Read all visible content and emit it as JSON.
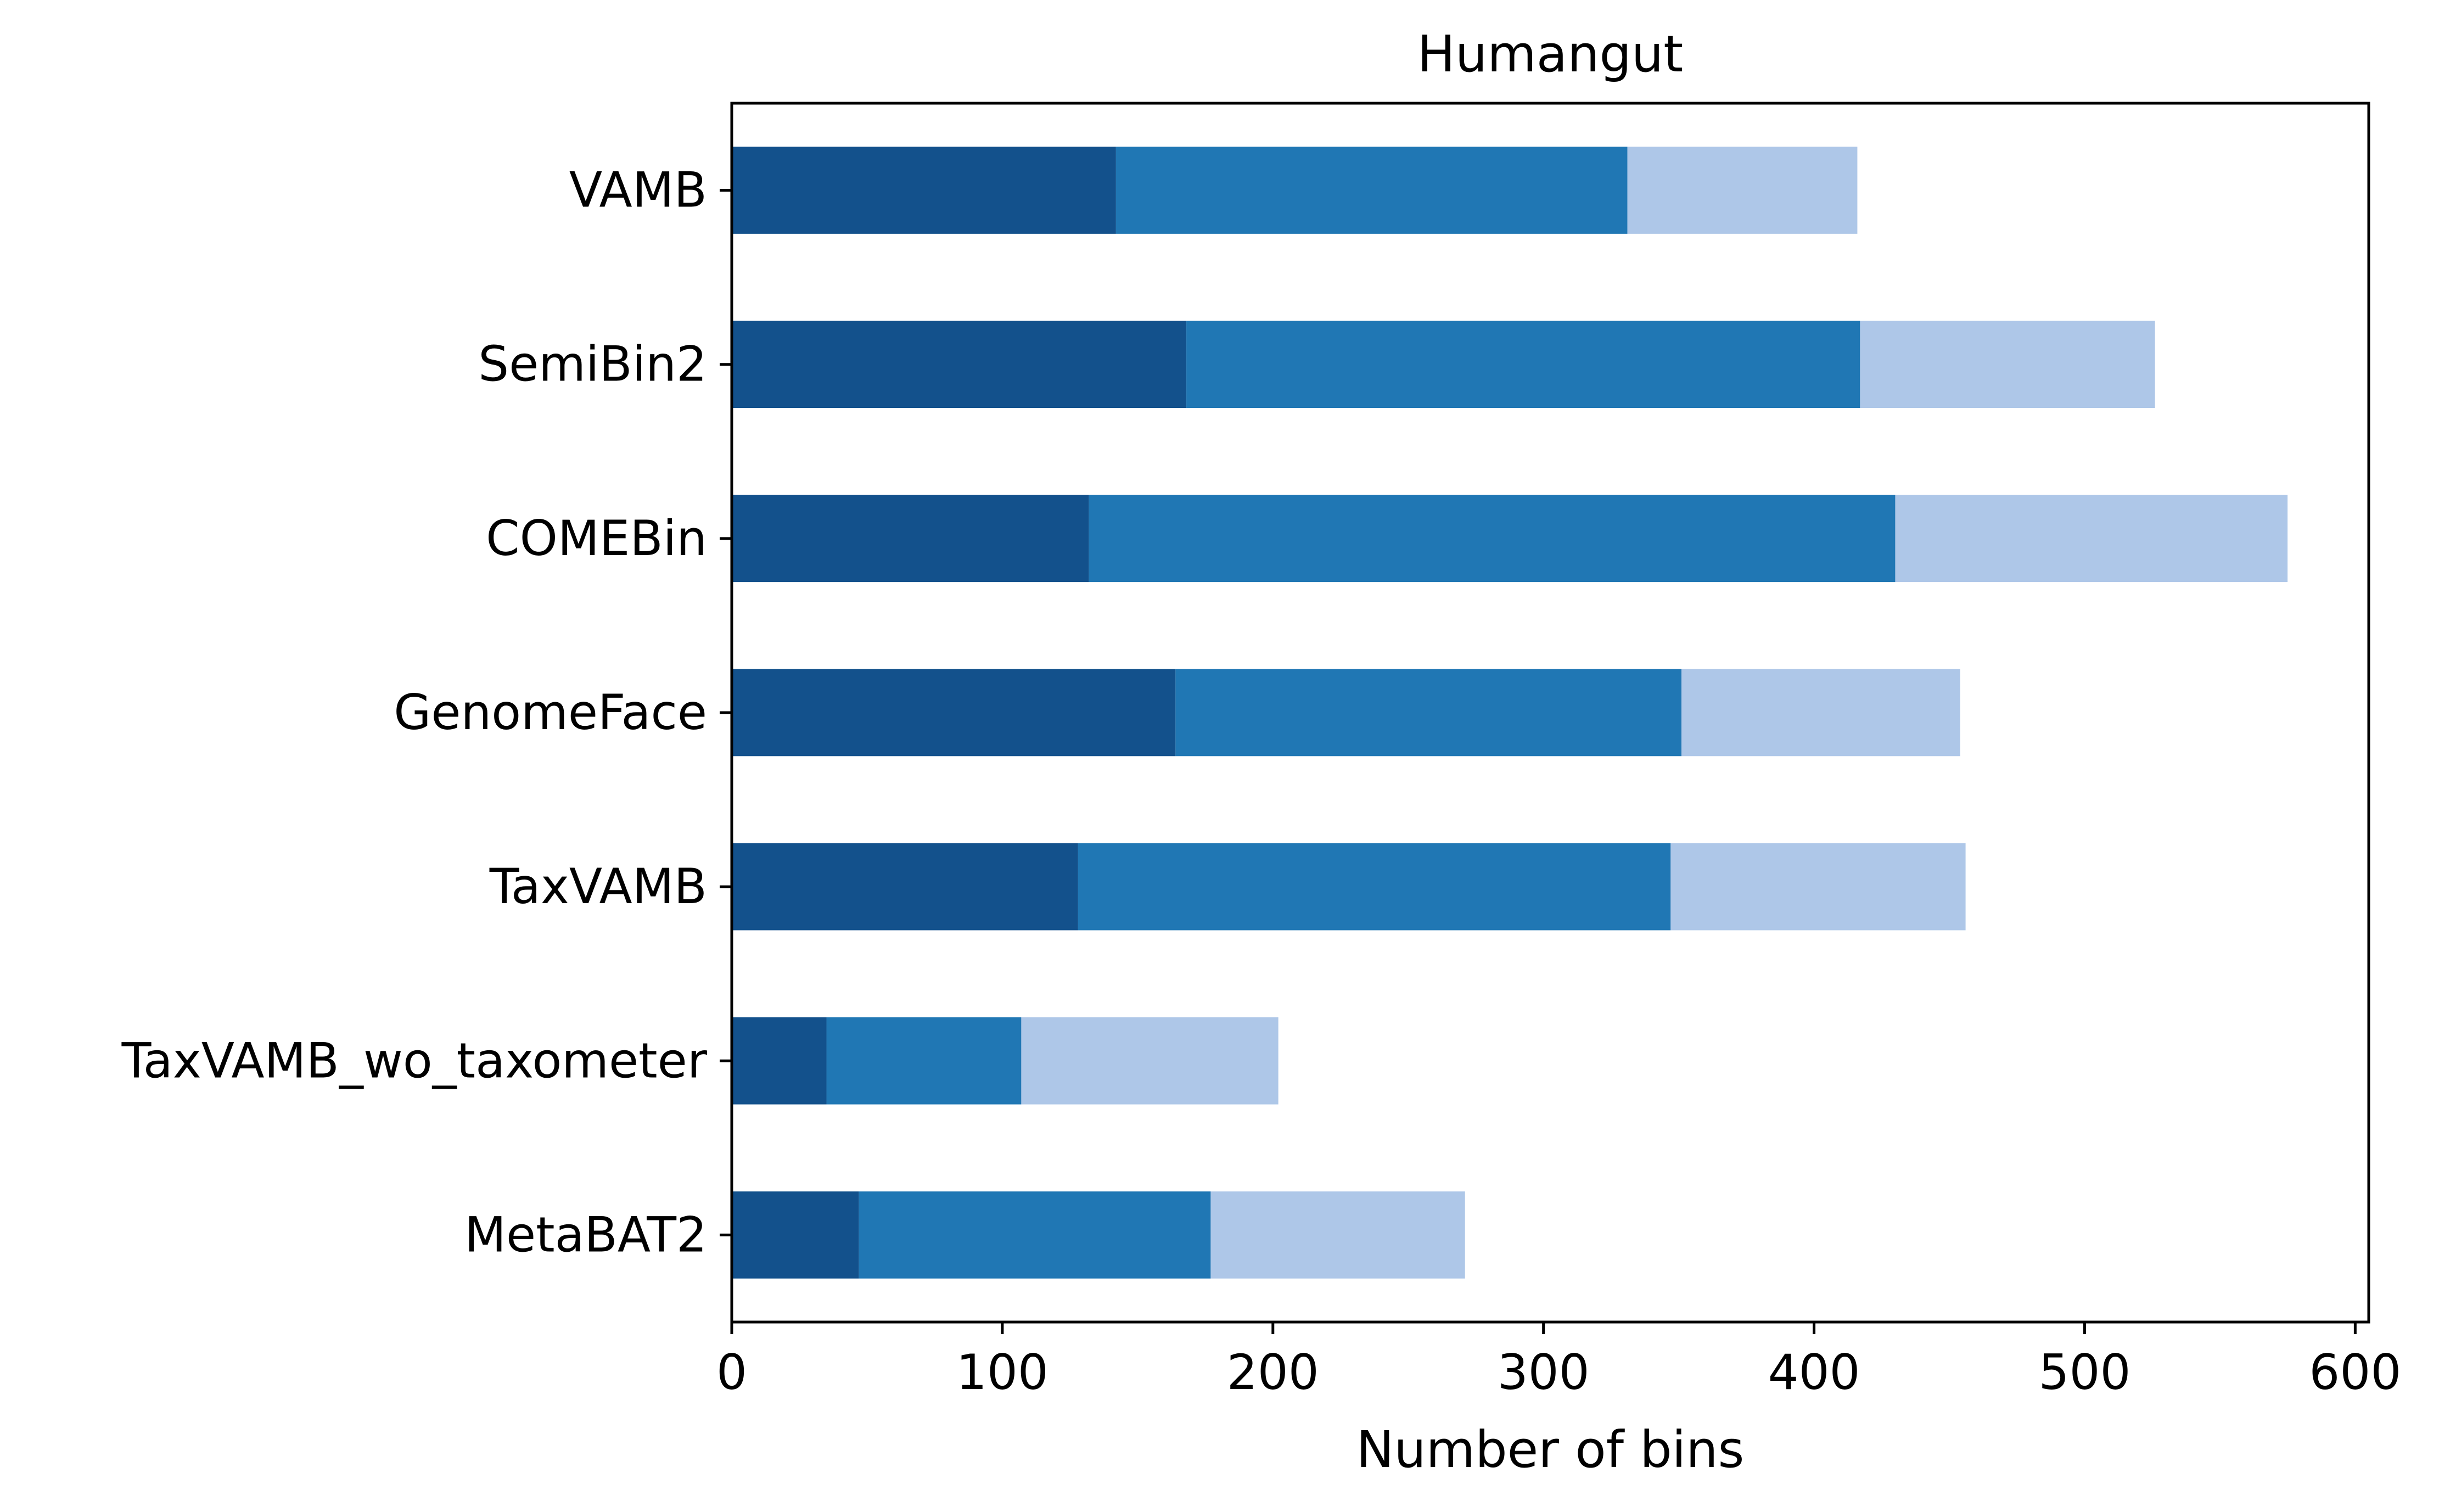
{
  "chart_data": {
    "type": "bar",
    "orientation": "horizontal",
    "stacked": true,
    "title": "Humangut",
    "xlabel": "Number of bins",
    "ylabel": "",
    "xlim": [
      0,
      605
    ],
    "xticks": [
      0,
      100,
      200,
      300,
      400,
      500,
      600
    ],
    "grid": false,
    "legend": "none",
    "categories": [
      "VAMB",
      "SemiBin2",
      "COMEBin",
      "GenomeFace",
      "TaxVAMB",
      "TaxVAMB_wo_taxometer",
      "MetaBAT2"
    ],
    "series": [
      {
        "color": "#13518c",
        "values": [
          142,
          168,
          132,
          164,
          128,
          35,
          47
        ]
      },
      {
        "color": "#2077b4",
        "values": [
          189,
          249,
          298,
          187,
          219,
          72,
          130
        ]
      },
      {
        "color": "#aec7e8",
        "values": [
          85,
          109,
          145,
          103,
          109,
          95,
          94
        ]
      }
    ]
  }
}
